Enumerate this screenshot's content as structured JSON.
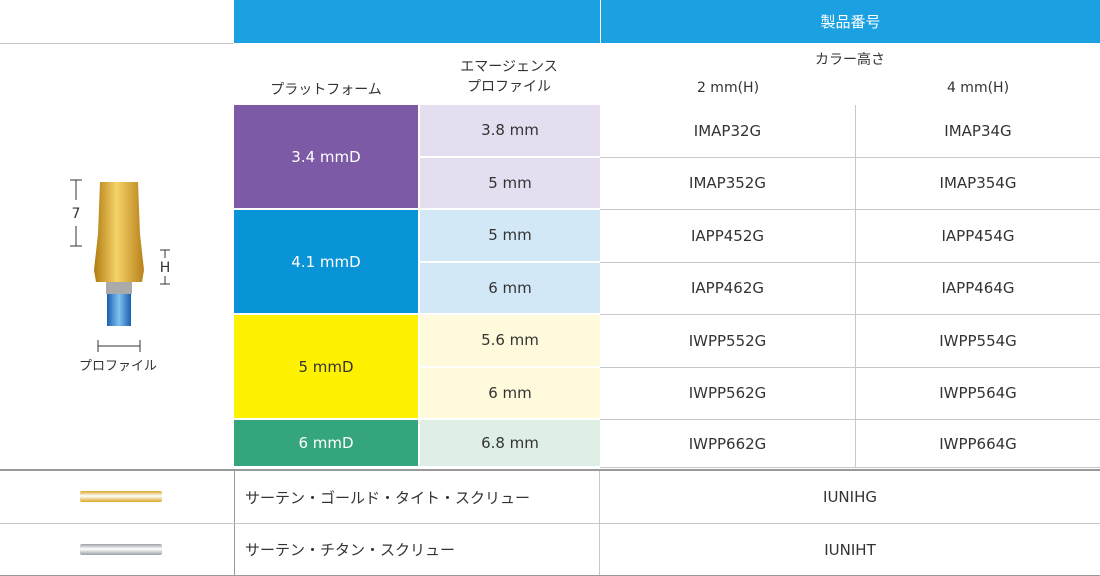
{
  "header": {
    "product_number": "製品番号",
    "platform": "プラットフォーム",
    "emergence_profile": [
      "エマージェンス",
      "プロファイル"
    ],
    "collar_height": "カラー高さ",
    "heights": [
      "2 mm(H)",
      "4 mm(H)"
    ]
  },
  "diagram": {
    "label_7": "7",
    "label_h": "H",
    "label_profile": "プロファイル"
  },
  "groups": [
    {
      "platform": "3.4 mmD",
      "rows": [
        {
          "profile": "3.8 mm",
          "codes": [
            "IMAP32G",
            "IMAP34G"
          ]
        },
        {
          "profile": "5 mm",
          "codes": [
            "IMAP352G",
            "IMAP354G"
          ]
        }
      ]
    },
    {
      "platform": "4.1 mmD",
      "rows": [
        {
          "profile": "5 mm",
          "codes": [
            "IAPP452G",
            "IAPP454G"
          ]
        },
        {
          "profile": "6 mm",
          "codes": [
            "IAPP462G",
            "IAPP464G"
          ]
        }
      ]
    },
    {
      "platform": "5 mmD",
      "rows": [
        {
          "profile": "5.6 mm",
          "codes": [
            "IWPP552G",
            "IWPP554G"
          ]
        },
        {
          "profile": "6 mm",
          "codes": [
            "IWPP562G",
            "IWPP564G"
          ]
        }
      ]
    },
    {
      "platform": "6 mmD",
      "rows": [
        {
          "profile": "6.8 mm",
          "codes": [
            "IWPP662G",
            "IWPP664G"
          ]
        }
      ]
    }
  ],
  "screws": [
    {
      "name": "サーテン・ゴールド・タイト・スクリュー",
      "code": "IUNIHG"
    },
    {
      "name": "サーテン・チタン・スクリュー",
      "code": "IUNIHT"
    }
  ]
}
